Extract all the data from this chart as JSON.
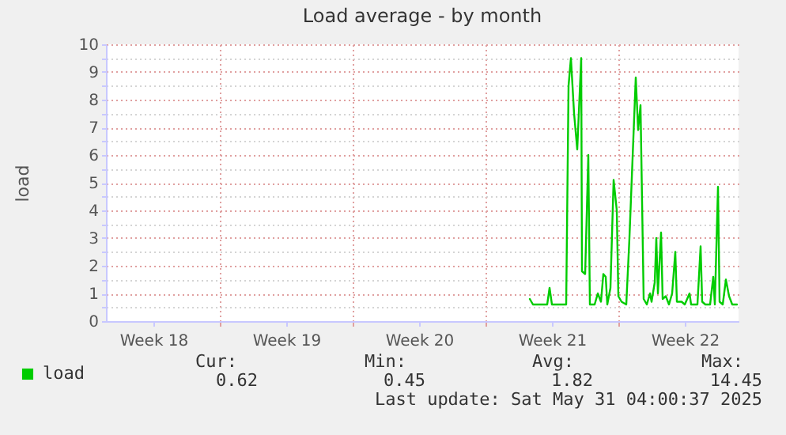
{
  "chart_data": {
    "type": "line",
    "title": "Load average - by month",
    "ylabel": "load",
    "x": [
      "2025-05-20T08:00",
      "2025-05-20T12:00",
      "2025-05-21T06:00",
      "2025-05-21T09:00",
      "2025-05-21T12:00",
      "2025-05-22T06:00",
      "2025-05-22T09:00",
      "2025-05-22T12:00",
      "2025-05-22T16:00",
      "2025-05-22T20:00",
      "2025-05-23T01:00",
      "2025-05-23T02:00",
      "2025-05-23T06:00",
      "2025-05-23T10:00",
      "2025-05-23T12:00",
      "2025-05-23T18:00",
      "2025-05-23T22:00",
      "2025-05-24T02:00",
      "2025-05-24T05:00",
      "2025-05-24T08:00",
      "2025-05-24T10:00",
      "2025-05-24T14:00",
      "2025-05-24T18:00",
      "2025-05-24T22:00",
      "2025-05-25T00:00",
      "2025-05-25T04:00",
      "2025-05-25T10:00",
      "2025-05-25T14:00",
      "2025-05-25T22:00",
      "2025-05-26T01:00",
      "2025-05-26T04:00",
      "2025-05-26T08:00",
      "2025-05-26T12:00",
      "2025-05-26T16:00",
      "2025-05-26T18:00",
      "2025-05-26T22:00",
      "2025-05-27T00:00",
      "2025-05-27T02:00",
      "2025-05-27T06:00",
      "2025-05-27T08:00",
      "2025-05-27T12:00",
      "2025-05-27T16:00",
      "2025-05-27T20:00",
      "2025-05-28T00:00",
      "2025-05-28T02:00",
      "2025-05-28T08:00",
      "2025-05-28T12:00",
      "2025-05-28T18:00",
      "2025-05-28T20:00",
      "2025-05-29T04:00",
      "2025-05-29T08:00",
      "2025-05-29T10:00",
      "2025-05-29T14:00",
      "2025-05-29T20:00",
      "2025-05-30T00:00",
      "2025-05-30T02:00",
      "2025-05-30T06:00",
      "2025-05-30T08:00",
      "2025-05-30T12:00",
      "2025-05-30T16:00",
      "2025-05-30T20:00",
      "2025-05-31T00:00",
      "2025-05-31T06:00"
    ],
    "series": [
      {
        "name": "load",
        "color": "#00cc00",
        "values": [
          0.8,
          0.6,
          0.6,
          1.2,
          0.6,
          0.6,
          8.5,
          9.5,
          7.5,
          6.2,
          9.5,
          1.8,
          1.7,
          6.0,
          0.6,
          0.6,
          1.0,
          0.7,
          1.7,
          1.6,
          0.6,
          1.2,
          5.1,
          4.0,
          0.9,
          0.7,
          0.6,
          3.0,
          8.8,
          6.9,
          7.8,
          0.8,
          0.6,
          1.0,
          0.7,
          1.4,
          3.0,
          1.0,
          3.2,
          0.8,
          0.9,
          0.6,
          1.0,
          2.5,
          0.7,
          0.7,
          0.6,
          1.0,
          0.6,
          0.6,
          2.7,
          0.7,
          0.6,
          0.6,
          1.6,
          0.6,
          4.85,
          0.7,
          0.6,
          1.5,
          0.9,
          0.6,
          0.6
        ]
      }
    ],
    "xlim": [
      "2025-04-28T00:00",
      "2025-05-31T08:00"
    ],
    "xticks": [
      {
        "value": "2025-04-30T12:00",
        "label": "Week 18"
      },
      {
        "value": "2025-05-07T12:00",
        "label": "Week 19"
      },
      {
        "value": "2025-05-14T12:00",
        "label": "Week 20"
      },
      {
        "value": "2025-05-21T12:00",
        "label": "Week 21"
      },
      {
        "value": "2025-05-28T12:00",
        "label": "Week 22"
      },
      {
        "value": "2025-05-04T00:00",
        "label": null
      },
      {
        "value": "2025-05-11T00:00",
        "label": null
      },
      {
        "value": "2025-05-18T00:00",
        "label": null
      },
      {
        "value": "2025-05-25T00:00",
        "label": null
      }
    ],
    "ylim": [
      0,
      10
    ],
    "yticks": [
      0,
      {
        "value": 0.5,
        "label": null
      },
      1,
      {
        "value": 1.5,
        "label": null
      },
      2,
      {
        "value": 2.5,
        "label": null
      },
      3,
      {
        "value": 3.5,
        "label": null
      },
      4,
      {
        "value": 4.5,
        "label": null
      },
      5,
      {
        "value": 5.5,
        "label": null
      },
      6,
      {
        "value": 6.5,
        "label": null
      },
      7,
      {
        "value": 7.5,
        "label": null
      },
      8,
      {
        "value": 8.5,
        "label": null
      },
      9,
      {
        "value": 9.5,
        "label": null
      },
      10
    ],
    "grid": true,
    "legend": "bottom left",
    "marker": "none",
    "line_style": "solid",
    "annotations": [
      "Cur:",
      "0.62",
      "Min:",
      "0.45",
      "Avg:",
      "1.82",
      "Max:",
      "14.45",
      "Last update: Sat May 31 04:00:37 2025"
    ]
  }
}
